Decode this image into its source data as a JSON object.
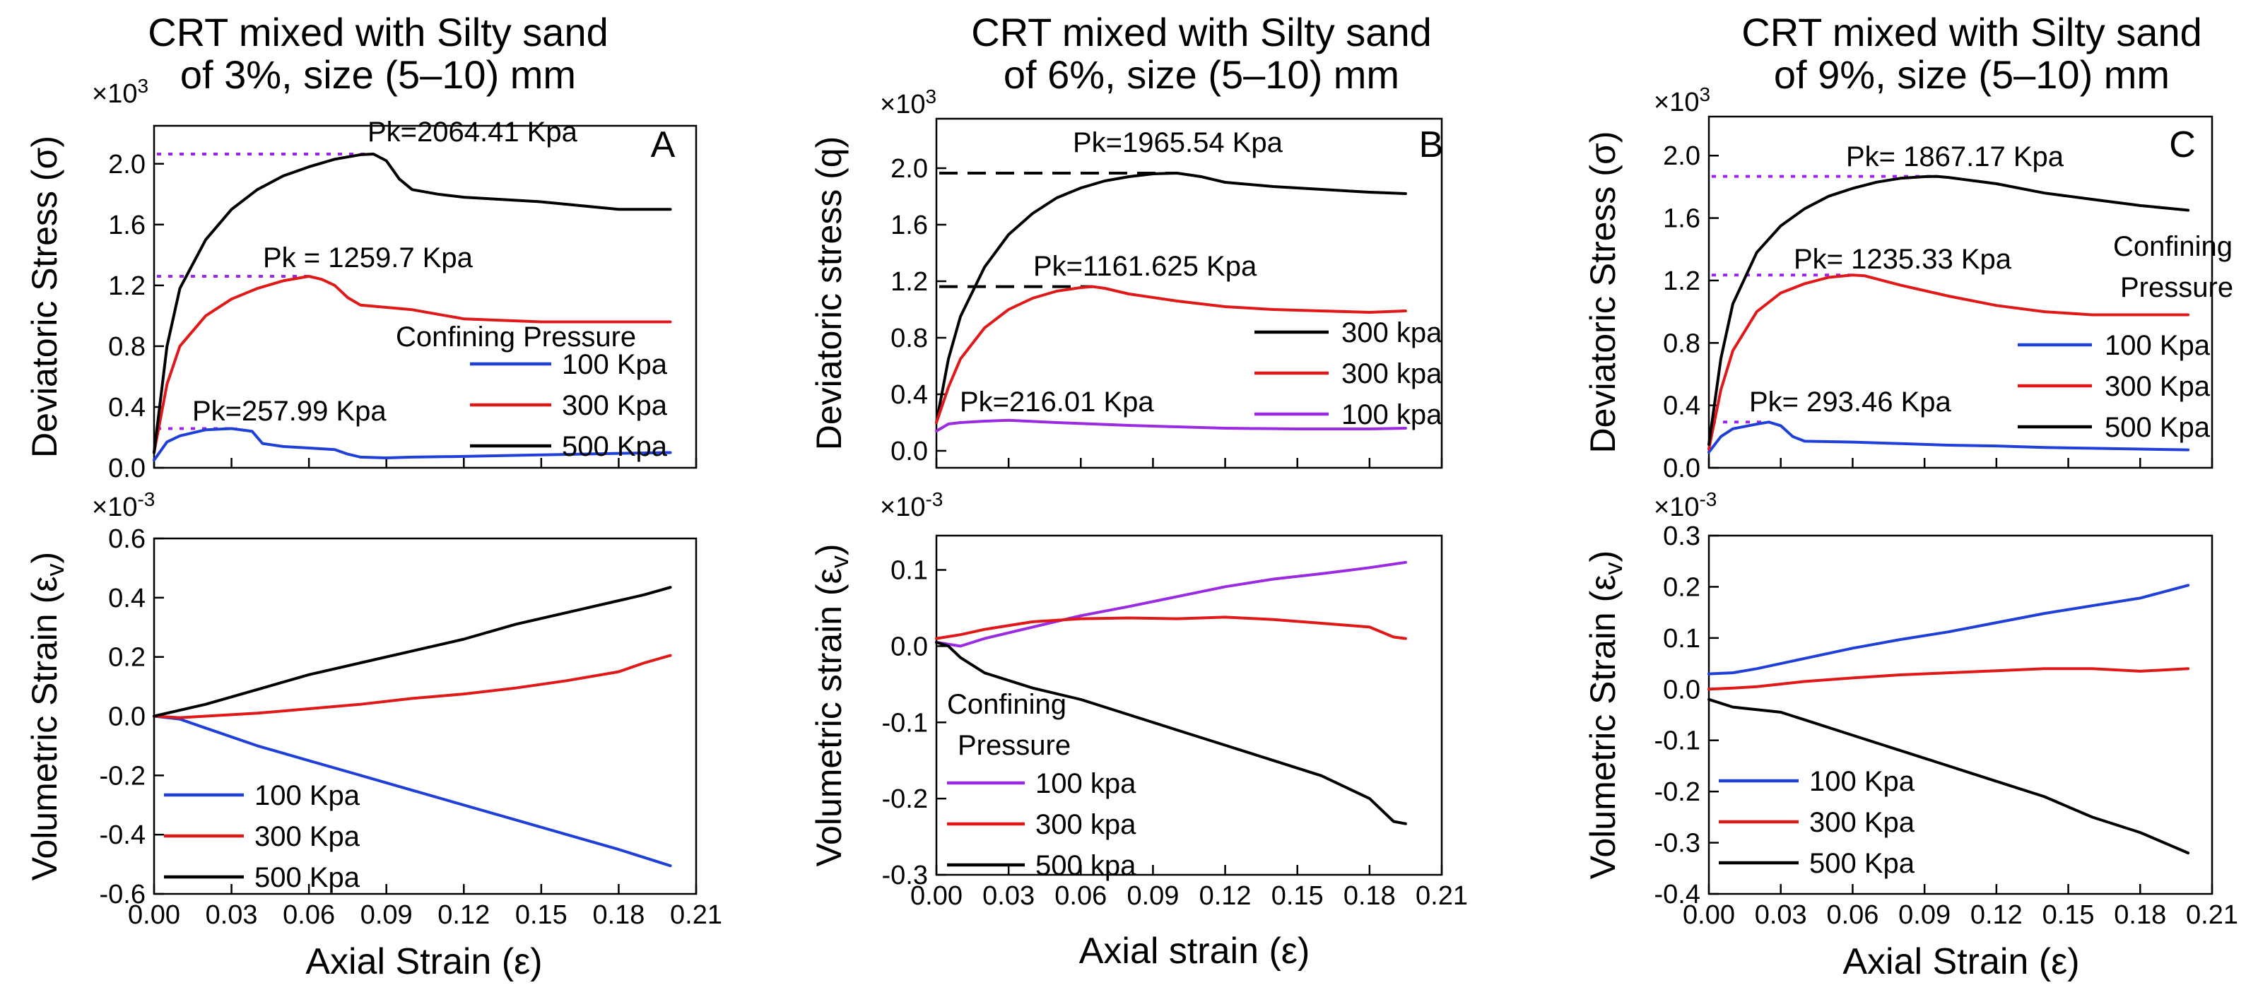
{
  "chart_data": [
    {
      "type": "line",
      "id": "A-stress",
      "panel_letter": "A",
      "title_line1": "CRT mixed with Silty sand",
      "title_line2": "of 3%, size (5–10) mm",
      "ylabel": "Deviatoric Stress (σ)",
      "multiplier": "×10^3",
      "xlim": [
        0,
        0.21
      ],
      "ylim": [
        0,
        2.25
      ],
      "yticks": [
        "0.0",
        "0.4",
        "0.8",
        "1.2",
        "1.6",
        "2.0"
      ],
      "legend_title": "Confining Pressure",
      "annotations": [
        {
          "text": "Pk=2064.41 Kpa",
          "x": 0.085,
          "y": 2.064,
          "guide": "dotted",
          "guide_color": "#a020f0"
        },
        {
          "text": "Pk = 1259.7 Kpa",
          "x": 0.06,
          "y": 1.26,
          "guide": "dotted",
          "guide_color": "#a020f0"
        },
        {
          "text": "Pk=257.99 Kpa",
          "x": 0.032,
          "y": 0.258,
          "guide": "dotted",
          "guide_color": "#a020f0"
        }
      ],
      "series": [
        {
          "name": "100 Kpa",
          "color": "#1f3fd9",
          "x": [
            0,
            0.005,
            0.01,
            0.02,
            0.03,
            0.038,
            0.042,
            0.05,
            0.06,
            0.07,
            0.075,
            0.08,
            0.09,
            0.1,
            0.12,
            0.15,
            0.18,
            0.2
          ],
          "y": [
            0.05,
            0.17,
            0.21,
            0.25,
            0.258,
            0.24,
            0.16,
            0.14,
            0.13,
            0.12,
            0.09,
            0.07,
            0.065,
            0.07,
            0.075,
            0.085,
            0.095,
            0.1
          ]
        },
        {
          "name": "300 Kpa",
          "color": "#e01818",
          "x": [
            0,
            0.005,
            0.01,
            0.02,
            0.03,
            0.04,
            0.05,
            0.06,
            0.065,
            0.07,
            0.075,
            0.08,
            0.1,
            0.12,
            0.15,
            0.18,
            0.2
          ],
          "y": [
            0.1,
            0.55,
            0.8,
            1.0,
            1.11,
            1.18,
            1.23,
            1.26,
            1.24,
            1.2,
            1.12,
            1.07,
            1.04,
            0.98,
            0.96,
            0.96,
            0.96
          ]
        },
        {
          "name": "500 Kpa",
          "color": "#000000",
          "x": [
            0,
            0.005,
            0.01,
            0.02,
            0.03,
            0.04,
            0.05,
            0.06,
            0.07,
            0.08,
            0.085,
            0.09,
            0.095,
            0.1,
            0.11,
            0.12,
            0.15,
            0.18,
            0.2
          ],
          "y": [
            0.1,
            0.8,
            1.18,
            1.5,
            1.7,
            1.83,
            1.92,
            1.98,
            2.03,
            2.06,
            2.064,
            2.02,
            1.9,
            1.83,
            1.8,
            1.78,
            1.75,
            1.7,
            1.7
          ]
        }
      ]
    },
    {
      "type": "line",
      "id": "A-volumetric",
      "ylabel": "Volumetric Strain (εv)",
      "xlabel": "Axial Strain (ε)",
      "multiplier": "×10^-3",
      "xlim": [
        0,
        0.21
      ],
      "ylim": [
        -0.6,
        0.6
      ],
      "xticks": [
        "0.00",
        "0.03",
        "0.06",
        "0.09",
        "0.12",
        "0.15",
        "0.18",
        "0.21"
      ],
      "yticks": [
        "-0.6",
        "-0.4",
        "-0.2",
        "0.0",
        "0.2",
        "0.4",
        "0.6"
      ],
      "series": [
        {
          "name": "100 Kpa",
          "color": "#1f3fd9",
          "x": [
            0,
            0.01,
            0.02,
            0.04,
            0.06,
            0.08,
            0.1,
            0.12,
            0.14,
            0.16,
            0.18,
            0.2
          ],
          "y": [
            0,
            -0.01,
            -0.04,
            -0.1,
            -0.15,
            -0.2,
            -0.25,
            -0.3,
            -0.35,
            -0.4,
            -0.45,
            -0.505
          ]
        },
        {
          "name": "300 Kpa",
          "color": "#e01818",
          "x": [
            0,
            0.01,
            0.02,
            0.04,
            0.06,
            0.08,
            0.1,
            0.12,
            0.14,
            0.16,
            0.18,
            0.19,
            0.2
          ],
          "y": [
            0,
            -0.005,
            0,
            0.01,
            0.025,
            0.04,
            0.06,
            0.075,
            0.095,
            0.12,
            0.15,
            0.18,
            0.205
          ]
        },
        {
          "name": "500 Kpa",
          "color": "#000000",
          "x": [
            0,
            0.01,
            0.02,
            0.04,
            0.06,
            0.08,
            0.1,
            0.12,
            0.14,
            0.16,
            0.18,
            0.19,
            0.2
          ],
          "y": [
            0,
            0.02,
            0.04,
            0.09,
            0.14,
            0.18,
            0.22,
            0.26,
            0.31,
            0.35,
            0.39,
            0.41,
            0.435
          ]
        }
      ]
    },
    {
      "type": "line",
      "id": "B-stress",
      "panel_letter": "B",
      "title_line1": "CRT mixed with Silty sand",
      "title_line2": "of 6%, size (5–10) mm",
      "ylabel": "Deviatoric stress (q)",
      "multiplier": "×10^3",
      "xlim": [
        0,
        0.21
      ],
      "ylim": [
        -0.12,
        2.35
      ],
      "yticks": [
        "0.0",
        "0.4",
        "0.8",
        "1.2",
        "1.6",
        "2.0"
      ],
      "annotations": [
        {
          "text": "Pk=1965.54 Kpa",
          "x": 0.1,
          "y": 1.965,
          "guide": "dashed",
          "guide_color": "#000000"
        },
        {
          "text": "Pk=1161.625 Kpa",
          "x": 0.065,
          "y": 1.162,
          "guide": "dashed",
          "guide_color": "#000000"
        },
        {
          "text": "Pk=216.01 Kpa",
          "x": 0.03,
          "y": 0.216,
          "guide": "none",
          "guide_color": "#000000"
        }
      ],
      "series": [
        {
          "name": "300 kpa",
          "color": "#000000",
          "x": [
            0,
            0.005,
            0.01,
            0.02,
            0.03,
            0.04,
            0.05,
            0.06,
            0.07,
            0.08,
            0.09,
            0.1,
            0.11,
            0.12,
            0.14,
            0.16,
            0.18,
            0.195
          ],
          "y": [
            0.2,
            0.65,
            0.95,
            1.3,
            1.53,
            1.68,
            1.79,
            1.86,
            1.91,
            1.94,
            1.96,
            1.965,
            1.94,
            1.9,
            1.87,
            1.85,
            1.83,
            1.82
          ]
        },
        {
          "name": "300 kpa",
          "color": "#e01818",
          "x": [
            0,
            0.005,
            0.01,
            0.02,
            0.03,
            0.04,
            0.05,
            0.06,
            0.065,
            0.07,
            0.08,
            0.1,
            0.12,
            0.14,
            0.16,
            0.18,
            0.195
          ],
          "y": [
            0.2,
            0.45,
            0.65,
            0.87,
            1.0,
            1.08,
            1.13,
            1.155,
            1.162,
            1.15,
            1.11,
            1.06,
            1.02,
            1.0,
            0.99,
            0.98,
            0.99
          ]
        },
        {
          "name": "100 kpa",
          "color": "#9a2be0",
          "x": [
            0,
            0.005,
            0.01,
            0.02,
            0.03,
            0.05,
            0.08,
            0.1,
            0.12,
            0.15,
            0.18,
            0.195
          ],
          "y": [
            0.14,
            0.19,
            0.2,
            0.21,
            0.216,
            0.2,
            0.18,
            0.17,
            0.16,
            0.155,
            0.155,
            0.16
          ]
        }
      ]
    },
    {
      "type": "line",
      "id": "B-volumetric",
      "ylabel": "Volumetric strain (εv)",
      "xlabel": "Axial strain (ε)",
      "multiplier": "×10^-3",
      "xlim": [
        0,
        0.21
      ],
      "ylim": [
        -0.3,
        0.145
      ],
      "xticks": [
        "0.00",
        "0.03",
        "0.06",
        "0.09",
        "0.12",
        "0.15",
        "0.18",
        "0.21"
      ],
      "yticks": [
        "-0.3",
        "-0.2",
        "-0.1",
        "0.0",
        "0.1"
      ],
      "legend_title_line1": "Confining",
      "legend_title_line2": "Pressure",
      "series": [
        {
          "name": "100 kpa",
          "color": "#9a2be0",
          "x": [
            0,
            0.01,
            0.02,
            0.04,
            0.06,
            0.08,
            0.1,
            0.12,
            0.14,
            0.16,
            0.18,
            0.195
          ],
          "y": [
            0.005,
            0,
            0.01,
            0.025,
            0.04,
            0.052,
            0.065,
            0.078,
            0.088,
            0.095,
            0.103,
            0.11
          ]
        },
        {
          "name": "300 kpa",
          "color": "#e01818",
          "x": [
            0,
            0.01,
            0.02,
            0.04,
            0.06,
            0.08,
            0.1,
            0.12,
            0.14,
            0.16,
            0.18,
            0.19,
            0.195
          ],
          "y": [
            0.01,
            0.015,
            0.022,
            0.032,
            0.036,
            0.037,
            0.036,
            0.038,
            0.035,
            0.03,
            0.025,
            0.012,
            0.01
          ]
        },
        {
          "name": "500 kpa",
          "color": "#000000",
          "x": [
            0,
            0.005,
            0.01,
            0.02,
            0.04,
            0.06,
            0.08,
            0.1,
            0.12,
            0.14,
            0.16,
            0.18,
            0.19,
            0.195
          ],
          "y": [
            0.005,
            0,
            -0.015,
            -0.035,
            -0.055,
            -0.07,
            -0.09,
            -0.11,
            -0.13,
            -0.15,
            -0.17,
            -0.2,
            -0.23,
            -0.233
          ]
        }
      ]
    },
    {
      "type": "line",
      "id": "C-stress",
      "panel_letter": "C",
      "title_line1": "CRT mixed with Silty sand",
      "title_line2": "of 9%, size (5–10) mm",
      "ylabel": "Deviatoric Stress (σ)",
      "multiplier": "×10^3",
      "xlim": [
        0,
        0.21
      ],
      "ylim": [
        0,
        2.25
      ],
      "yticks": [
        "0.0",
        "0.4",
        "0.8",
        "1.2",
        "1.6",
        "2.0"
      ],
      "legend_title_line1": "Confining",
      "legend_title_line2": "Pressure",
      "annotations": [
        {
          "text": "Pk= 1867.17 Kpa",
          "x": 0.095,
          "y": 1.867,
          "guide": "dotted",
          "guide_color": "#a020f0"
        },
        {
          "text": "Pk= 1235.33 Kpa",
          "x": 0.06,
          "y": 1.235,
          "guide": "dotted",
          "guide_color": "#a020f0"
        },
        {
          "text": "Pk= 293.46 Kpa",
          "x": 0.025,
          "y": 0.293,
          "guide": "dotted",
          "guide_color": "#a020f0"
        }
      ],
      "series": [
        {
          "name": "100 Kpa",
          "color": "#1f3fd9",
          "x": [
            0,
            0.005,
            0.01,
            0.02,
            0.025,
            0.03,
            0.035,
            0.04,
            0.06,
            0.08,
            0.1,
            0.12,
            0.14,
            0.16,
            0.18,
            0.2
          ],
          "y": [
            0.1,
            0.2,
            0.25,
            0.28,
            0.293,
            0.27,
            0.2,
            0.17,
            0.165,
            0.155,
            0.145,
            0.14,
            0.13,
            0.125,
            0.12,
            0.115
          ]
        },
        {
          "name": "300 Kpa",
          "color": "#e01818",
          "x": [
            0,
            0.005,
            0.01,
            0.02,
            0.03,
            0.04,
            0.05,
            0.06,
            0.065,
            0.07,
            0.08,
            0.1,
            0.12,
            0.14,
            0.16,
            0.18,
            0.2
          ],
          "y": [
            0.12,
            0.5,
            0.75,
            1.0,
            1.12,
            1.18,
            1.22,
            1.235,
            1.23,
            1.21,
            1.17,
            1.1,
            1.04,
            1.0,
            0.98,
            0.98,
            0.98
          ]
        },
        {
          "name": "500 Kpa",
          "color": "#000000",
          "x": [
            0,
            0.005,
            0.01,
            0.02,
            0.03,
            0.04,
            0.05,
            0.06,
            0.07,
            0.08,
            0.09,
            0.095,
            0.1,
            0.12,
            0.14,
            0.16,
            0.18,
            0.2
          ],
          "y": [
            0.15,
            0.7,
            1.05,
            1.38,
            1.55,
            1.66,
            1.74,
            1.79,
            1.83,
            1.855,
            1.865,
            1.867,
            1.86,
            1.82,
            1.76,
            1.72,
            1.68,
            1.65
          ]
        }
      ]
    },
    {
      "type": "line",
      "id": "C-volumetric",
      "ylabel": "Volumetric Strain (εv)",
      "xlabel": "Axial Strain (ε)",
      "multiplier": "×10^-3",
      "xlim": [
        0,
        0.21
      ],
      "ylim": [
        -0.4,
        0.3
      ],
      "xticks": [
        "0.00",
        "0.03",
        "0.06",
        "0.09",
        "0.12",
        "0.15",
        "0.18",
        "0.21"
      ],
      "yticks": [
        "-0.4",
        "-0.3",
        "-0.2",
        "-0.1",
        "0.0",
        "0.1",
        "0.2",
        "0.3"
      ],
      "series": [
        {
          "name": "100 Kpa",
          "color": "#1f3fd9",
          "x": [
            0,
            0.01,
            0.02,
            0.04,
            0.06,
            0.08,
            0.1,
            0.12,
            0.14,
            0.16,
            0.18,
            0.2
          ],
          "y": [
            0.03,
            0.032,
            0.04,
            0.06,
            0.08,
            0.097,
            0.112,
            0.13,
            0.148,
            0.163,
            0.178,
            0.203
          ]
        },
        {
          "name": "300 Kpa",
          "color": "#e01818",
          "x": [
            0,
            0.01,
            0.02,
            0.04,
            0.06,
            0.08,
            0.1,
            0.12,
            0.14,
            0.16,
            0.18,
            0.2
          ],
          "y": [
            0,
            0.002,
            0.005,
            0.015,
            0.022,
            0.028,
            0.032,
            0.036,
            0.04,
            0.04,
            0.035,
            0.04
          ]
        },
        {
          "name": "500 Kpa",
          "color": "#000000",
          "x": [
            0,
            0.01,
            0.02,
            0.03,
            0.04,
            0.06,
            0.08,
            0.1,
            0.12,
            0.14,
            0.16,
            0.18,
            0.2
          ],
          "y": [
            -0.02,
            -0.035,
            -0.04,
            -0.045,
            -0.06,
            -0.09,
            -0.12,
            -0.15,
            -0.18,
            -0.21,
            -0.25,
            -0.28,
            -0.32
          ]
        }
      ]
    }
  ]
}
